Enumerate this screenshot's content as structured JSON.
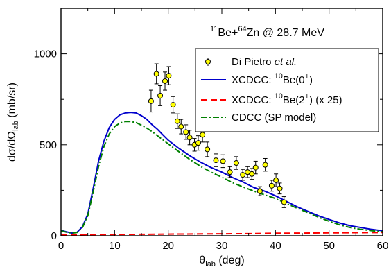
{
  "chart_data": {
    "type": "line",
    "annotation": {
      "pre": "11",
      "a": "Be+",
      "sup2": "64",
      "b": "Zn @ 28.7 MeV"
    },
    "xlabel": {
      "main": "θ",
      "sub": "lab",
      "unit": " (deg)"
    },
    "ylabel": {
      "main": "dσ/dΩ",
      "sub": "lab",
      "unit": " (mb/sr)"
    },
    "xlim": [
      0,
      60
    ],
    "ylim": [
      0,
      1250
    ],
    "xticks": [
      0,
      10,
      20,
      30,
      40,
      50,
      60
    ],
    "yticks": [
      0,
      500,
      1000
    ],
    "x_minor_step": 5,
    "y_minor_step": 250,
    "grid": false,
    "legend_position": "top-right",
    "colors": {
      "xcdcc_gs": "#0000cc",
      "xcdcc_ex": "#ff0000",
      "cdcc": "#008000",
      "data_fill": "#ffff00",
      "data_edge": "#000000",
      "axis": "#000000"
    },
    "legend": [
      {
        "key": "data",
        "parts": [
          {
            "t": "Di Pietro "
          },
          {
            "t": "et al.",
            "italic": true
          }
        ]
      },
      {
        "key": "xcdcc_gs",
        "parts": [
          {
            "t": "XCDCC: "
          },
          {
            "t": "10",
            "sup": true
          },
          {
            "t": "Be(0"
          },
          {
            "t": "+",
            "sup": true
          },
          {
            "t": ")"
          }
        ]
      },
      {
        "key": "xcdcc_ex",
        "parts": [
          {
            "t": "XCDCC: "
          },
          {
            "t": "10",
            "sup": true
          },
          {
            "t": "Be(2"
          },
          {
            "t": "+",
            "sup": true
          },
          {
            "t": ")  (x 25)"
          }
        ]
      },
      {
        "key": "cdcc",
        "parts": [
          {
            "t": "CDCC (SP model)"
          }
        ]
      }
    ],
    "series": [
      {
        "key": "xcdcc_gs",
        "style": "solid",
        "x": [
          0,
          1,
          2,
          3,
          4,
          5,
          6,
          7,
          8,
          9,
          10,
          11,
          12,
          13,
          14,
          15,
          16,
          17,
          18,
          19,
          20,
          22,
          24,
          26,
          28,
          30,
          32,
          34,
          36,
          38,
          40,
          42,
          44,
          46,
          48,
          50,
          52,
          54,
          56,
          58,
          60
        ],
        "y": [
          30,
          22,
          15,
          20,
          50,
          120,
          260,
          410,
          520,
          595,
          640,
          665,
          675,
          678,
          675,
          660,
          640,
          610,
          585,
          555,
          525,
          480,
          440,
          405,
          375,
          350,
          320,
          295,
          265,
          245,
          220,
          190,
          160,
          135,
          110,
          90,
          70,
          55,
          45,
          35,
          28
        ]
      },
      {
        "key": "xcdcc_ex",
        "style": "dashed",
        "x": [
          0,
          5,
          10,
          15,
          20,
          25,
          30,
          35,
          40,
          45,
          50,
          55,
          60
        ],
        "y": [
          5,
          6,
          7,
          8,
          9,
          10,
          11,
          12,
          14,
          15,
          16,
          17,
          18
        ]
      },
      {
        "key": "cdcc",
        "style": "dashdot",
        "x": [
          0,
          1,
          2,
          3,
          4,
          5,
          6,
          7,
          8,
          9,
          10,
          11,
          12,
          13,
          14,
          15,
          16,
          17,
          18,
          19,
          20,
          22,
          24,
          26,
          28,
          30,
          32,
          34,
          36,
          38,
          40,
          42,
          44,
          46,
          48,
          50,
          52,
          54,
          56,
          58,
          60
        ],
        "y": [
          28,
          20,
          14,
          18,
          45,
          110,
          240,
          380,
          490,
          560,
          600,
          620,
          628,
          628,
          622,
          608,
          592,
          572,
          550,
          528,
          505,
          462,
          420,
          382,
          350,
          322,
          292,
          268,
          245,
          225,
          205,
          178,
          152,
          128,
          102,
          80,
          60,
          45,
          35,
          28,
          22
        ]
      }
    ],
    "points": {
      "key": "data",
      "x": [
        16.8,
        17.8,
        18.5,
        19.4,
        20.1,
        20.9,
        21.7,
        22.4,
        23.3,
        24.0,
        24.9,
        25.6,
        26.4,
        27.3,
        28.9,
        30.2,
        31.5,
        32.7,
        33.9,
        34.8,
        35.6,
        36.3,
        37.1,
        38.1,
        39.3,
        40.1,
        40.8,
        41.6
      ],
      "y": [
        740,
        890,
        770,
        850,
        880,
        720,
        630,
        600,
        570,
        540,
        500,
        510,
        555,
        475,
        415,
        410,
        350,
        400,
        335,
        350,
        340,
        375,
        245,
        390,
        275,
        305,
        260,
        185
      ],
      "err": [
        60,
        55,
        55,
        50,
        50,
        45,
        40,
        40,
        40,
        40,
        35,
        40,
        40,
        40,
        35,
        35,
        30,
        35,
        30,
        30,
        30,
        35,
        25,
        35,
        30,
        35,
        30,
        30
      ]
    }
  }
}
